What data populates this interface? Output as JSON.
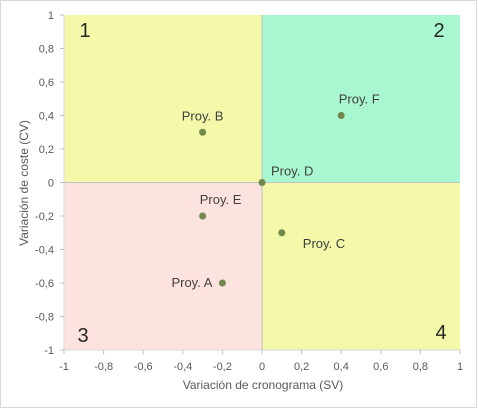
{
  "chart_data": {
    "type": "scatter",
    "xlabel": "Variación de cronograma (SV)",
    "ylabel": "Variación de coste (CV)",
    "xlim": [
      -1,
      1
    ],
    "ylim": [
      -1,
      1
    ],
    "x_ticks": [
      -1,
      -0.8,
      -0.6,
      -0.4,
      -0.2,
      0,
      0.2,
      0.4,
      0.6,
      0.8,
      1
    ],
    "y_ticks": [
      -1,
      -0.8,
      -0.6,
      -0.4,
      -0.2,
      0,
      0.2,
      0.4,
      0.6,
      0.8,
      1
    ],
    "x_tick_labels": [
      "-1",
      "-0,8",
      "-0,6",
      "-0,4",
      "-0,2",
      "0",
      "0,2",
      "0,4",
      "0,6",
      "0,8",
      "1"
    ],
    "y_tick_labels": [
      "-1",
      "-0,8",
      "-0,6",
      "-0,4",
      "-0,2",
      "0",
      "0,2",
      "0,4",
      "0,6",
      "0,8",
      "1"
    ],
    "points": [
      {
        "label": "Proy. A",
        "x": -0.2,
        "y": -0.6
      },
      {
        "label": "Proy. B",
        "x": -0.3,
        "y": 0.3
      },
      {
        "label": "Proy. C",
        "x": 0.1,
        "y": -0.3
      },
      {
        "label": "Proy. D",
        "x": 0.0,
        "y": 0.0
      },
      {
        "label": "Proy. E",
        "x": -0.3,
        "y": -0.2
      },
      {
        "label": "Proy. F",
        "x": 0.4,
        "y": 0.4
      }
    ],
    "quadrants": [
      {
        "label": "1",
        "position": "top-left",
        "color": "#f4f8a9"
      },
      {
        "label": "2",
        "position": "top-right",
        "color": "#a9f7d0"
      },
      {
        "label": "3",
        "position": "bottom-left",
        "color": "#fde3e0"
      },
      {
        "label": "4",
        "position": "bottom-right",
        "color": "#f4f8a9"
      }
    ],
    "marker_color": "#70884a",
    "legend": "none",
    "grid": false
  }
}
